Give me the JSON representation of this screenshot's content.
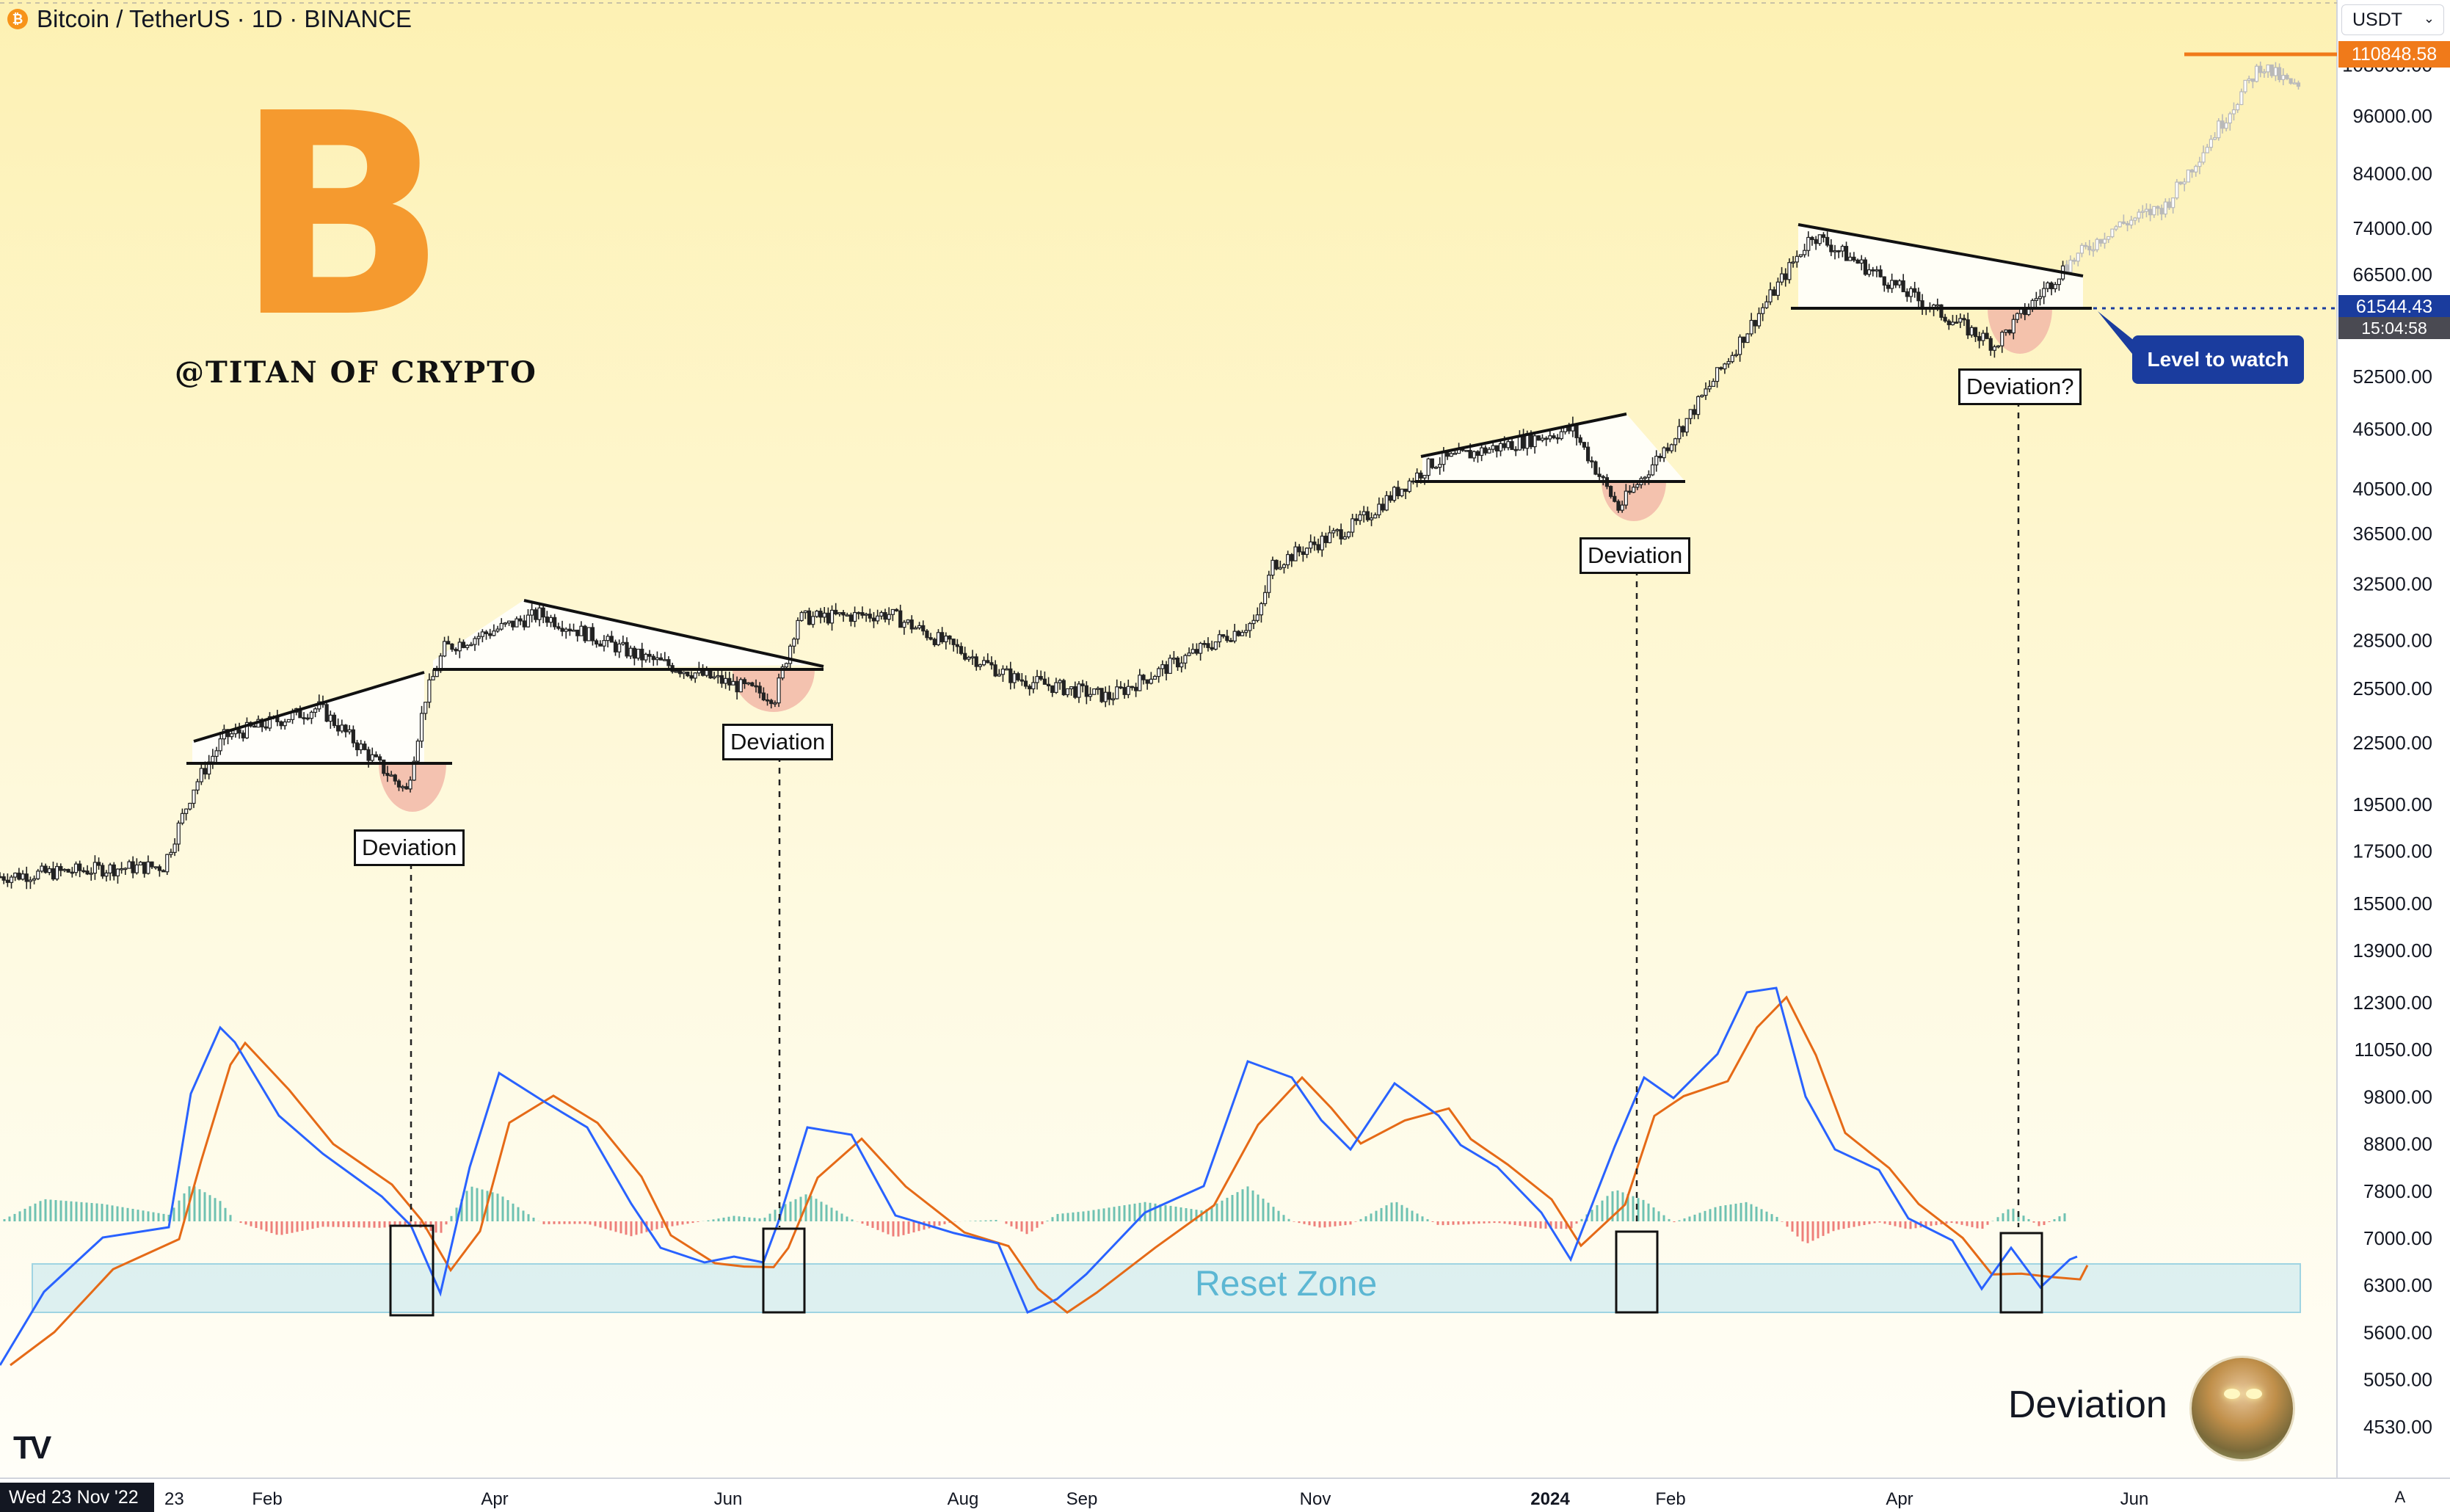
{
  "header": {
    "symbol_title": "Bitcoin / TetherUS · 1D · BINANCE",
    "coin_glyph": "₿"
  },
  "currency": {
    "selected": "USDT"
  },
  "branding": {
    "logo_letter": "B",
    "handle": "@TITAN OF CRYPTO"
  },
  "price_axis": {
    "ticks": [
      "108000.00",
      "96000.00",
      "84000.00",
      "74000.00",
      "66500.00",
      "52500.00",
      "46500.00",
      "40500.00",
      "36500.00",
      "32500.00",
      "28500.00",
      "25500.00",
      "22500.00",
      "19500.00",
      "17500.00",
      "15500.00",
      "13900.00",
      "12300.00",
      "11050.00",
      "9800.00",
      "8800.00",
      "7800.00",
      "7000.00",
      "6300.00",
      "5600.00",
      "5050.00",
      "4530.00"
    ],
    "high_tag": "110848.58",
    "current_tag": "61544.43",
    "countdown_tag": "15:04:58"
  },
  "time_axis": {
    "ticks": [
      "Feb",
      "Apr",
      "Jun",
      "Aug",
      "Sep",
      "Nov",
      "2024",
      "Feb",
      "Apr",
      "Jun"
    ],
    "cursor_date": "Wed 23 Nov '22",
    "partial_tick": "23"
  },
  "annotations": {
    "deviations": [
      "Deviation",
      "Deviation",
      "Deviation",
      "Deviation?"
    ],
    "level_label": "Level to watch",
    "reset_zone": "Reset Zone",
    "caption": "Deviation"
  },
  "toolbar": {
    "logo": "TV",
    "auto_label": "A"
  },
  "colors": {
    "macd": "#2962ff",
    "signal": "#e56a17",
    "hist_up": "#26a69a",
    "hist_down": "#ef5350",
    "accent_orange": "#f7931a",
    "level_blue": "#1a3c9e"
  },
  "chart_data": {
    "type": "line",
    "title": "Bitcoin / TetherUS · 1D · BINANCE",
    "scale": "log",
    "ylim": [
      4530,
      110848.58
    ],
    "x_range": [
      "2022-11-23",
      "2024-07-20"
    ],
    "series": [
      {
        "name": "BTCUSDT",
        "x": [
          "2022-11-23",
          "2022-12-20",
          "2023-01-05",
          "2023-01-13",
          "2023-01-21",
          "2023-02-15",
          "2023-03-10",
          "2023-03-15",
          "2023-03-20",
          "2023-04-14",
          "2023-05-10",
          "2023-06-15",
          "2023-06-21",
          "2023-07-15",
          "2023-08-17",
          "2023-09-11",
          "2023-10-20",
          "2023-10-24",
          "2023-11-15",
          "2023-12-05",
          "2024-01-11",
          "2024-01-23",
          "2024-02-10",
          "2024-02-28",
          "2024-03-14",
          "2024-04-13",
          "2024-05-01",
          "2024-05-20"
        ],
        "values": [
          16500,
          16800,
          16900,
          20300,
          22800,
          24400,
          20100,
          25000,
          28000,
          30300,
          27500,
          25000,
          30000,
          30300,
          26100,
          25000,
          29900,
          34000,
          37300,
          43000,
          46500,
          38700,
          47500,
          60000,
          73000,
          62000,
          56500,
          68000
        ]
      },
      {
        "name": "BTCUSDT projection",
        "x": [
          "2024-05-20",
          "2024-06-01",
          "2024-06-15",
          "2024-07-01",
          "2024-07-10",
          "2024-07-20"
        ],
        "values": [
          68000,
          74000,
          78000,
          96000,
          108000,
          102000
        ]
      }
    ],
    "levels": {
      "current_price": 61544.43,
      "projection_high": 110848.58
    }
  }
}
